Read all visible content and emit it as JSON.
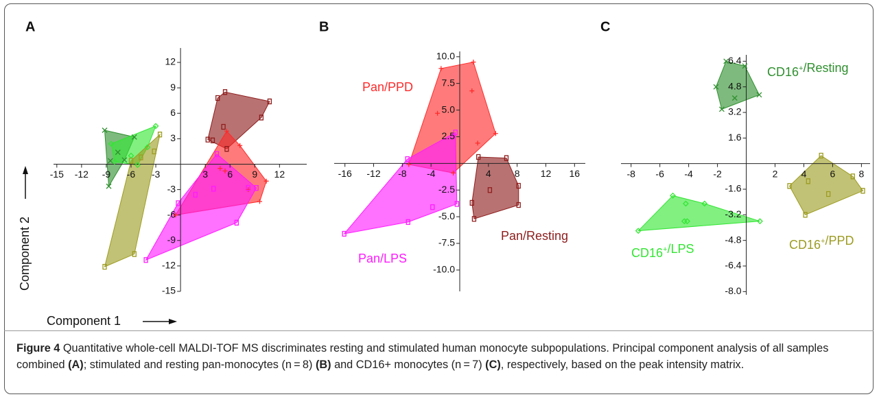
{
  "chart_data": [
    {
      "type": "scatter",
      "panel": "A",
      "xlim": [
        -15.4,
        15.3
      ],
      "ylim": [
        -15,
        13.7
      ],
      "xticks": [
        -15,
        -12,
        -9,
        -6,
        -3,
        3,
        6,
        9,
        12
      ],
      "yticks": [
        12,
        9,
        6,
        3,
        -3,
        -6,
        -9,
        -12,
        -15
      ],
      "series": [
        {
          "color": "#2f8f2f",
          "marker": "x",
          "x": [
            -9.2,
            -8.7,
            -8.5,
            -7.6,
            -6.8,
            -5.6
          ],
          "y": [
            4.0,
            -2.6,
            0.4,
            1.4,
            0.5,
            3.2
          ]
        },
        {
          "color": "#33e633",
          "marker": "diamond",
          "x": [
            -8.4,
            -3.0,
            -5.2,
            -8.0,
            -4.0,
            -6.0
          ],
          "y": [
            2.4,
            4.5,
            -0.1,
            0.3,
            2.0,
            1.0
          ]
        },
        {
          "color": "#9c9c22",
          "marker": "square",
          "x": [
            -9.2,
            -5.6,
            -2.5,
            -3.2,
            -4.8,
            -6.0
          ],
          "y": [
            -12.1,
            -10.6,
            3.5,
            1.5,
            0.8,
            0.4
          ]
        },
        {
          "color": "#8e1c1c",
          "marker": "square",
          "x": [
            3.3,
            4.5,
            5.4,
            10.8,
            9.8,
            5.2,
            5.6,
            3.9
          ],
          "y": [
            2.9,
            7.8,
            8.5,
            7.4,
            5.5,
            4.4,
            1.8,
            2.8
          ]
        },
        {
          "color": "#ff2a2a",
          "marker": "plus",
          "x": [
            5.6,
            7.2,
            10.4,
            9.6,
            -0.6,
            4.8,
            5.4,
            8.2
          ],
          "y": [
            3.9,
            2.2,
            -2.0,
            -4.4,
            -6.0,
            -0.5,
            -0.8,
            -3.0
          ]
        },
        {
          "color": "#ff1aff",
          "marker": "square",
          "x": [
            4.4,
            9.2,
            6.8,
            -4.2,
            -0.3,
            1.8,
            4.0,
            8.2
          ],
          "y": [
            1.2,
            -2.8,
            -6.9,
            -11.3,
            -4.6,
            -3.6,
            -2.9,
            -2.8
          ]
        }
      ]
    },
    {
      "type": "scatter",
      "panel": "B",
      "xlim": [
        -17.5,
        17.5
      ],
      "ylim": [
        -12,
        10.5
      ],
      "xticks": [
        -16,
        -12,
        -8,
        -4,
        4,
        8,
        12,
        16
      ],
      "yticks": [
        {
          "value": 10,
          "label": "10.0"
        },
        7.5,
        {
          "value": 5,
          "label": "5.0"
        },
        2.5,
        -2.5,
        {
          "value": -5,
          "label": "-5.0"
        },
        -7.5,
        {
          "value": -10,
          "label": "-10.0"
        }
      ],
      "series": [
        {
          "name": "Pan/PPD",
          "color": "#ff2a2a",
          "marker": "plus",
          "x": [
            -2.6,
            1.9,
            5.0,
            -0.9,
            -7.1,
            1.7,
            -3.1,
            2.5
          ],
          "y": [
            8.9,
            9.5,
            2.8,
            -0.9,
            -0.1,
            6.8,
            4.7,
            1.9
          ]
        },
        {
          "name": "Pan/LPS",
          "color": "#ff1aff",
          "marker": "square",
          "x": [
            -16.1,
            -7.2,
            -7.3,
            -0.6,
            -0.4,
            -3.8
          ],
          "y": [
            -6.6,
            -5.5,
            0.4,
            2.9,
            -3.8,
            -4.1
          ]
        },
        {
          "name": "Pan/Resting",
          "color": "#8e1c1c",
          "marker": "square",
          "x": [
            2.6,
            6.5,
            8.2,
            8.2,
            2.0,
            1.7,
            4.2
          ],
          "y": [
            0.6,
            0.5,
            -2.1,
            -3.9,
            -5.2,
            -3.7,
            -2.5
          ]
        }
      ]
    },
    {
      "type": "scatter",
      "panel": "C",
      "xlim": [
        -8.7,
        8.6
      ],
      "ylim": [
        -8.2,
        6.8
      ],
      "xticks": [
        -8,
        -6,
        -4,
        -2,
        2,
        4,
        6,
        8
      ],
      "yticks": [
        6.4,
        4.8,
        3.2,
        1.6,
        -1.6,
        -3.2,
        -4.8,
        -6.4,
        {
          "value": -8,
          "label": "-8.0"
        }
      ],
      "series": [
        {
          "name": "CD16+/Resting",
          "color": "#2f8f2f",
          "marker": "x",
          "x": [
            -1.4,
            -0.1,
            0.9,
            -1.7,
            -2.1,
            -0.8
          ],
          "y": [
            6.4,
            6.1,
            4.3,
            3.4,
            4.8,
            4.1
          ]
        },
        {
          "name": "CD16+/LPS",
          "color": "#33e633",
          "marker": "diamond",
          "x": [
            -7.5,
            -5.1,
            0.95,
            -4.2,
            -2.9,
            -4.3,
            -4.1
          ],
          "y": [
            -4.2,
            -2.0,
            -3.6,
            -2.5,
            -2.5,
            -3.6,
            -3.6
          ]
        },
        {
          "name": "CD16+/PPD",
          "color": "#9c9c22",
          "marker": "square",
          "x": [
            5.2,
            7.4,
            8.1,
            4.1,
            3.0,
            4.3,
            5.7
          ],
          "y": [
            0.5,
            -0.8,
            -1.7,
            -3.2,
            -1.4,
            -1.1,
            -1.9
          ]
        }
      ]
    }
  ],
  "axis_labels": {
    "x": "Component 1",
    "y": "Component 2"
  },
  "caption": {
    "label": "Figure 4",
    "segments": [
      " Quantitative whole-cell MALDI-TOF MS discriminates resting and stimulated human monocyte subpopulations. Principal component analysis of all samples combined ",
      "(A)",
      "; stimulated and resting pan-monocytes (n = 8) ",
      "(B)",
      " and CD16+ monocytes (n = 7) ",
      "(C)",
      ", respectively, based on the peak intensity matrix."
    ]
  }
}
